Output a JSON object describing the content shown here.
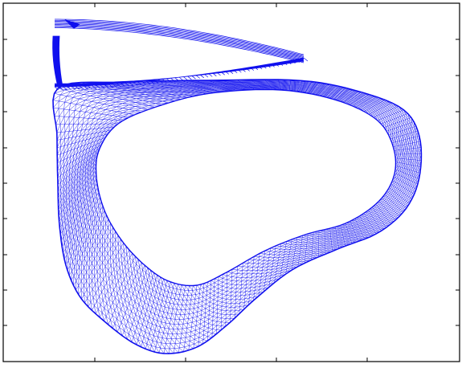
{
  "figure": {
    "description_text": "",
    "frame": {
      "x_ticks_count": 4,
      "y_ticks_count": 9
    },
    "colors": {
      "mesh": "#1010ee",
      "frame": "#000000",
      "background": "#ffffff"
    },
    "shapes": {
      "outer_ring": "deformed-ring-mesh",
      "top_lobe": "fold-lobe-mesh"
    }
  }
}
